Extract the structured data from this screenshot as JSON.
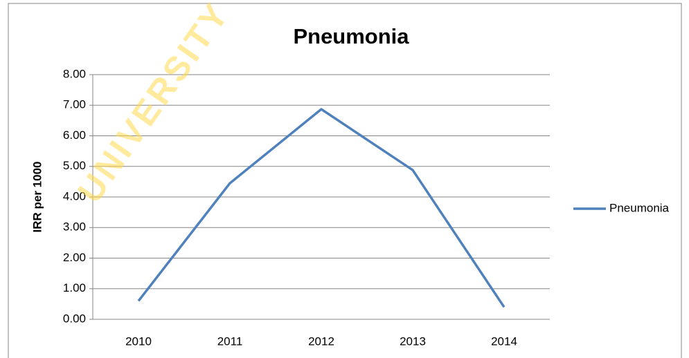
{
  "chart_data": {
    "type": "line",
    "title": "Pneumonia",
    "y_label": "IRR per 1000",
    "watermark": "UNIVERSITY",
    "categories": [
      "2010",
      "2011",
      "2012",
      "2013",
      "2014"
    ],
    "series": [
      {
        "name": "Pneumonia",
        "color": "#4f81bd",
        "values": [
          0.6,
          4.45,
          6.87,
          4.88,
          0.4
        ]
      }
    ],
    "ylim": [
      0,
      8
    ],
    "yticks": [
      {
        "value": 0,
        "label": "0.00"
      },
      {
        "value": 1,
        "label": "1.00"
      },
      {
        "value": 2,
        "label": "2.00"
      },
      {
        "value": 3,
        "label": "3.00"
      },
      {
        "value": 4,
        "label": "4.00"
      },
      {
        "value": 5,
        "label": "5.00"
      },
      {
        "value": 6,
        "label": "6.00"
      },
      {
        "value": 7,
        "label": "7.00"
      },
      {
        "value": 8,
        "label": "8.00"
      }
    ],
    "grid": true,
    "legend": "right"
  }
}
